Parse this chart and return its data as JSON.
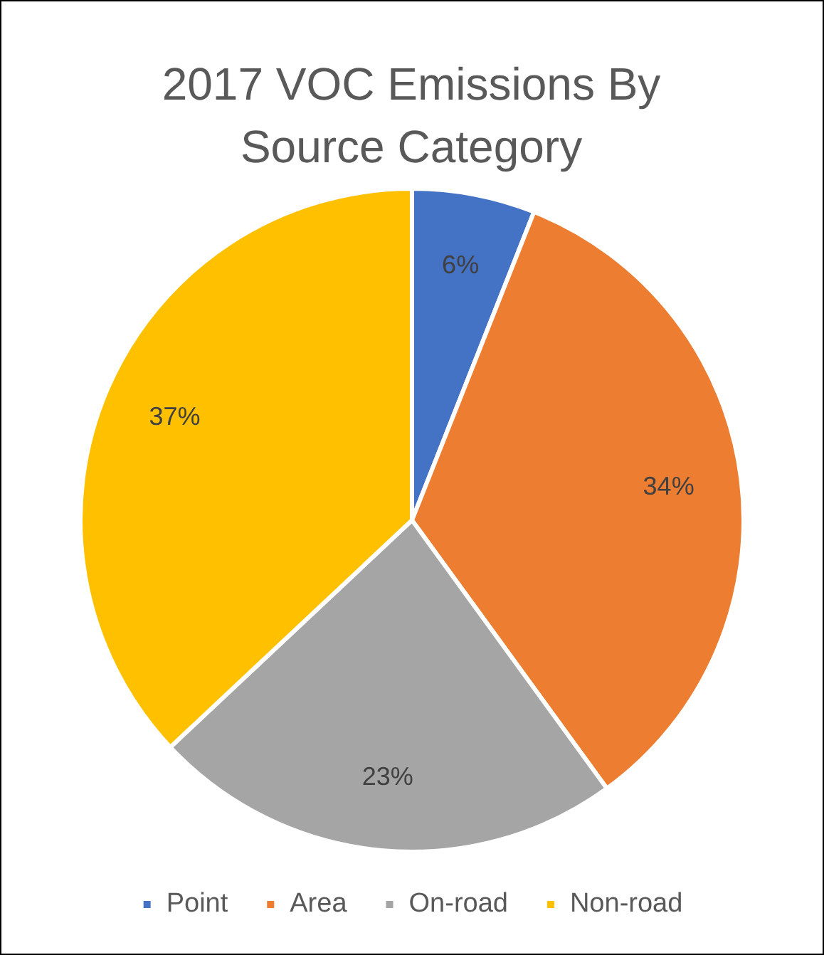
{
  "chart_data": {
    "type": "pie",
    "title": "2017 VOC Emissions By Source Category",
    "categories": [
      "Point",
      "Area",
      "On-road",
      "Non-road"
    ],
    "values": [
      6,
      34,
      23,
      37
    ],
    "colors": [
      "#4472c4",
      "#ed7d31",
      "#a5a5a5",
      "#ffc000"
    ],
    "value_labels": [
      "6%",
      "34%",
      "23%",
      "37%"
    ],
    "legend": "bottom"
  }
}
